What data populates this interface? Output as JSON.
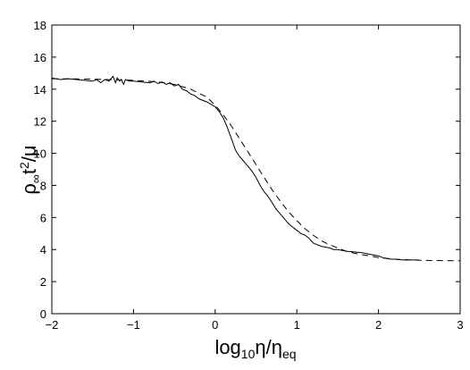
{
  "chart_data": {
    "type": "line",
    "xlabel": {
      "base": "log",
      "sub1": "10",
      "mid": "η/η",
      "sub2": "eq"
    },
    "ylabel": {
      "base": "ρ",
      "sub": "∞",
      "mid": "t",
      "sup": "2",
      "tail": "/μ"
    },
    "xlim": [
      -2,
      3
    ],
    "ylim": [
      0,
      18
    ],
    "xticks": [
      -2,
      -1,
      0,
      1,
      2,
      3
    ],
    "yticks": [
      0,
      2,
      4,
      6,
      8,
      10,
      12,
      14,
      16,
      18
    ],
    "grid": false,
    "series": [
      {
        "style": "solid",
        "x": [
          -2.0,
          -1.9,
          -1.8,
          -1.7,
          -1.6,
          -1.5,
          -1.45,
          -1.4,
          -1.35,
          -1.3,
          -1.25,
          -1.22,
          -1.2,
          -1.17,
          -1.15,
          -1.12,
          -1.1,
          -1.05,
          -1.0,
          -0.9,
          -0.8,
          -0.75,
          -0.7,
          -0.65,
          -0.6,
          -0.55,
          -0.5,
          -0.45,
          -0.4,
          -0.35,
          -0.3,
          -0.25,
          -0.2,
          -0.1,
          0.0,
          0.05,
          0.1,
          0.15,
          0.2,
          0.25,
          0.3,
          0.35,
          0.4,
          0.45,
          0.5,
          0.55,
          0.6,
          0.65,
          0.7,
          0.75,
          0.8,
          0.85,
          0.9,
          0.95,
          1.0,
          1.05,
          1.1,
          1.15,
          1.2,
          1.25,
          1.3,
          1.35,
          1.4,
          1.45,
          1.5,
          1.6,
          1.7,
          1.8,
          1.9,
          2.0,
          2.05,
          2.1,
          2.15,
          2.2,
          2.3,
          2.4,
          2.5
        ],
        "y": [
          14.7,
          14.6,
          14.65,
          14.6,
          14.55,
          14.5,
          14.6,
          14.4,
          14.6,
          14.5,
          14.8,
          14.4,
          14.7,
          14.5,
          14.6,
          14.3,
          14.6,
          14.5,
          14.5,
          14.45,
          14.4,
          14.5,
          14.35,
          14.45,
          14.3,
          14.4,
          14.2,
          14.3,
          14.0,
          13.9,
          13.7,
          13.6,
          13.4,
          13.2,
          12.9,
          12.6,
          12.2,
          11.6,
          10.9,
          10.2,
          9.8,
          9.5,
          9.2,
          8.9,
          8.5,
          8.0,
          7.6,
          7.3,
          6.9,
          6.5,
          6.2,
          5.9,
          5.6,
          5.4,
          5.2,
          5.0,
          4.9,
          4.7,
          4.4,
          4.3,
          4.2,
          4.15,
          4.1,
          4.0,
          4.0,
          3.9,
          3.85,
          3.8,
          3.7,
          3.6,
          3.5,
          3.45,
          3.4,
          3.4,
          3.35,
          3.35,
          3.35
        ]
      },
      {
        "style": "dashed",
        "x": [
          -2.0,
          -1.5,
          -1.0,
          -0.7,
          -0.5,
          -0.3,
          -0.1,
          0.0,
          0.1,
          0.2,
          0.3,
          0.4,
          0.5,
          0.6,
          0.7,
          0.8,
          0.9,
          1.0,
          1.1,
          1.2,
          1.3,
          1.4,
          1.5,
          1.6,
          1.7,
          1.8,
          1.9,
          2.0,
          2.2,
          2.4,
          2.6,
          2.8,
          3.0
        ],
        "y": [
          14.65,
          14.63,
          14.55,
          14.45,
          14.3,
          14.0,
          13.5,
          13.0,
          12.4,
          11.7,
          10.9,
          10.1,
          9.3,
          8.5,
          7.7,
          7.0,
          6.35,
          5.8,
          5.3,
          4.9,
          4.55,
          4.3,
          4.1,
          3.9,
          3.78,
          3.68,
          3.6,
          3.5,
          3.4,
          3.35,
          3.32,
          3.31,
          3.3
        ]
      }
    ]
  }
}
